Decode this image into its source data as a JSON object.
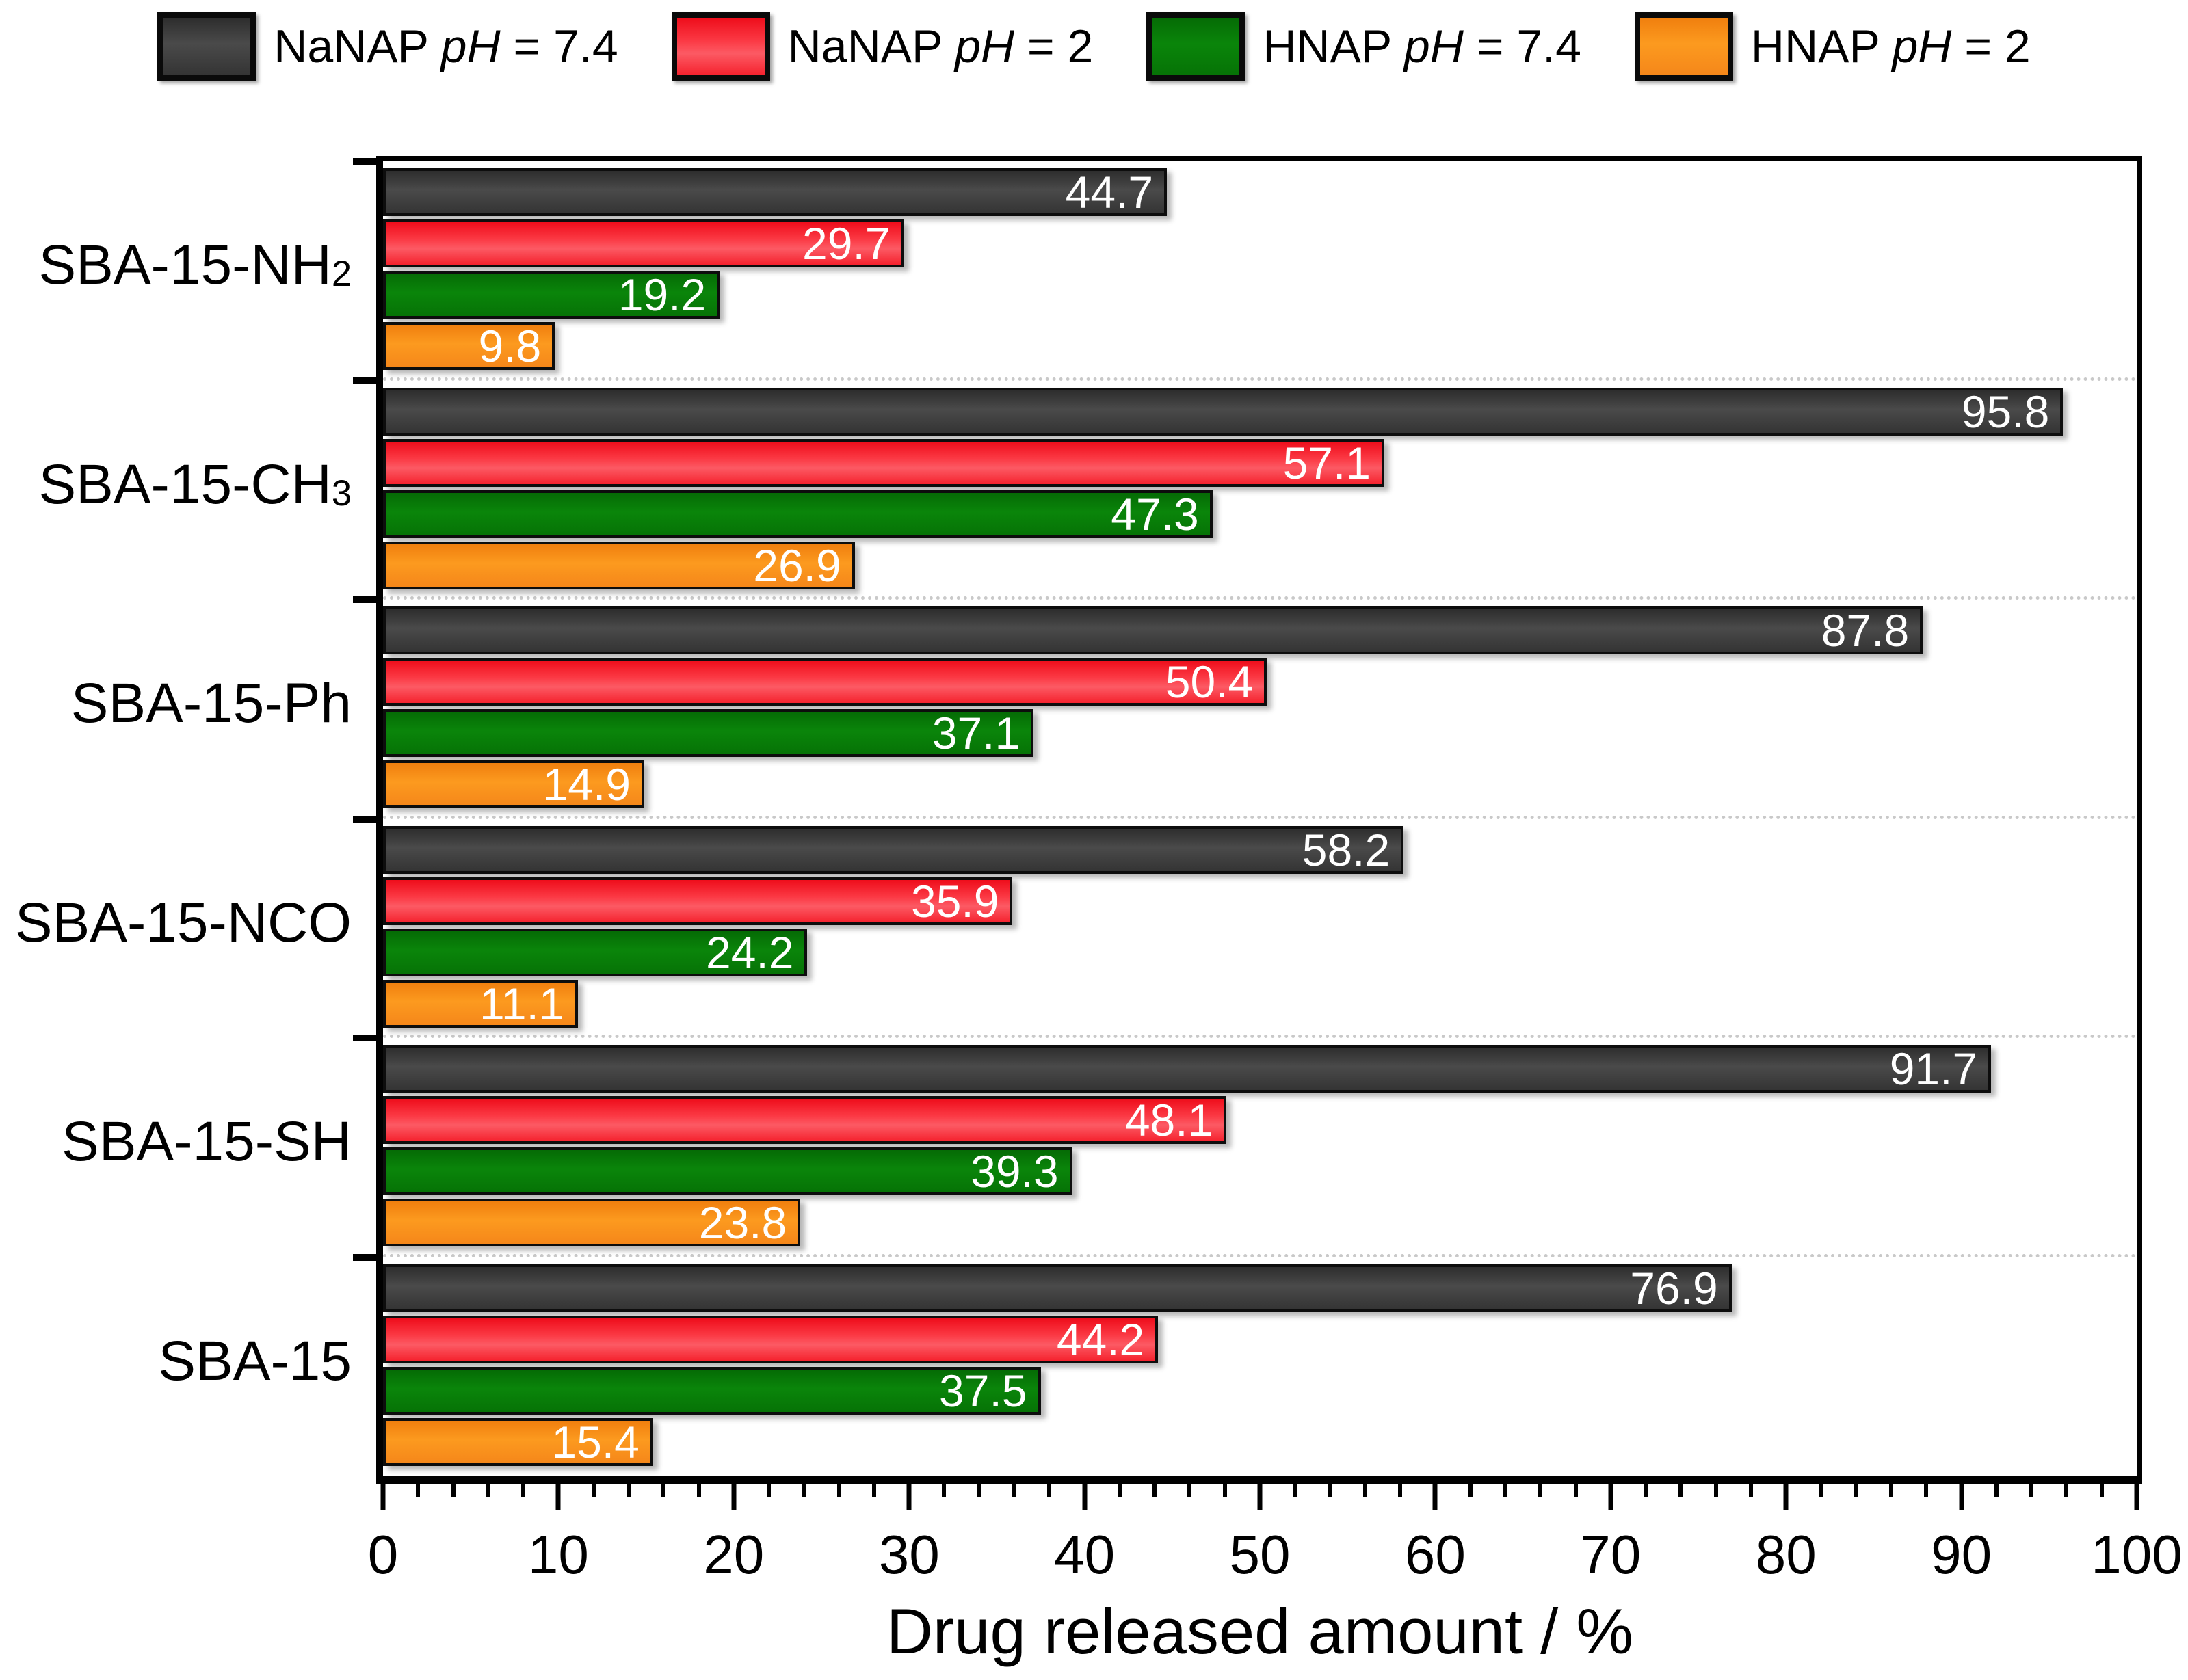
{
  "chart_data": {
    "type": "bar",
    "orientation": "horizontal",
    "title": "",
    "xlabel": "Drug released amount / %",
    "ylabel": "",
    "xlim": [
      0,
      100
    ],
    "x_major_step": 10,
    "x_minor_step": 2,
    "x_tick_labels": [
      "0",
      "10",
      "20",
      "30",
      "40",
      "50",
      "60",
      "70",
      "80",
      "90",
      "100"
    ],
    "grid": "dotted horizontal separators between category groups",
    "legend_position": "top-center",
    "categories": [
      {
        "text": "SBA-15-NH",
        "sub": "2"
      },
      {
        "text": "SBA-15-CH",
        "sub": "3"
      },
      {
        "text": "SBA-15-Ph",
        "sub": ""
      },
      {
        "text": "SBA-15-NCO",
        "sub": ""
      },
      {
        "text": "SBA-15-SH",
        "sub": ""
      },
      {
        "text": "SBA-15",
        "sub": ""
      }
    ],
    "series": [
      {
        "name": "NaNAP pH = 7.4",
        "label_prefix": "NaNAP ",
        "label_italic": "pH",
        "label_suffix": " = 7.4",
        "color": "#3a3a3a",
        "color_key": "dark",
        "values": [
          44.7,
          95.8,
          87.8,
          58.2,
          91.7,
          76.9
        ]
      },
      {
        "name": "NaNAP pH = 2",
        "label_prefix": "NaNAP ",
        "label_italic": "pH",
        "label_suffix": " = 2",
        "color": "#fb2330",
        "color_key": "red",
        "values": [
          29.7,
          57.1,
          50.4,
          35.9,
          48.1,
          44.2
        ]
      },
      {
        "name": "HNAP pH = 7.4",
        "label_prefix": "HNAP ",
        "label_italic": "pH",
        "label_suffix": " = 7.4",
        "color": "#077c07",
        "color_key": "green",
        "values": [
          19.2,
          47.3,
          37.1,
          24.2,
          39.3,
          37.5
        ]
      },
      {
        "name": "HNAP pH = 2",
        "label_prefix": "HNAP ",
        "label_italic": "pH",
        "label_suffix": " = 2",
        "color": "#f98f1b",
        "color_key": "orange",
        "values": [
          9.8,
          26.9,
          14.9,
          11.1,
          23.8,
          15.4
        ]
      }
    ],
    "value_label_color": "#ffffff"
  }
}
